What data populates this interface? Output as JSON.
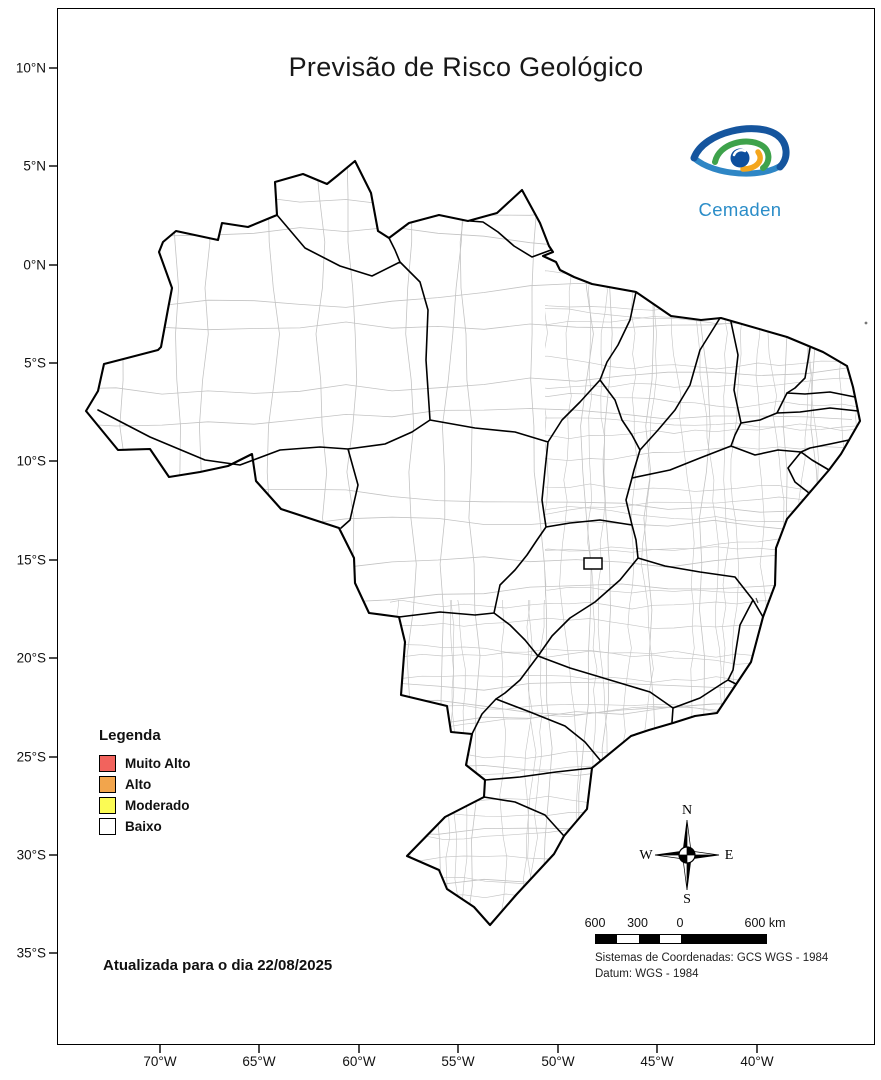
{
  "title": "Previsão de Risco Geológico",
  "logo": {
    "text": "Cemaden"
  },
  "legend": {
    "title": "Legenda",
    "items": [
      {
        "label": "Muito Alto",
        "color": "#F2635D"
      },
      {
        "label": "Alto",
        "color": "#F2A54C"
      },
      {
        "label": "Moderado",
        "color": "#FBFB54"
      },
      {
        "label": "Baixo",
        "color": "#FFFFFF"
      }
    ]
  },
  "update_note": "Atualizada para o dia 22/08/2025",
  "axes": {
    "lat_ticks": [
      "10°N",
      "5°N",
      "0°N",
      "5°S",
      "10°S",
      "15°S",
      "20°S",
      "25°S",
      "30°S",
      "35°S"
    ],
    "lon_ticks": [
      "70°W",
      "65°W",
      "60°W",
      "55°W",
      "50°W",
      "45°W",
      "40°W"
    ]
  },
  "compass": {
    "n": "N",
    "s": "S",
    "e": "E",
    "w": "W"
  },
  "scalebar": {
    "labels": [
      "600",
      "300",
      "0",
      "600 km"
    ]
  },
  "crs": {
    "line1": "Sistemas de Coordenadas: GCS WGS - 1984",
    "line2": "Datum: WGS - 1984"
  }
}
